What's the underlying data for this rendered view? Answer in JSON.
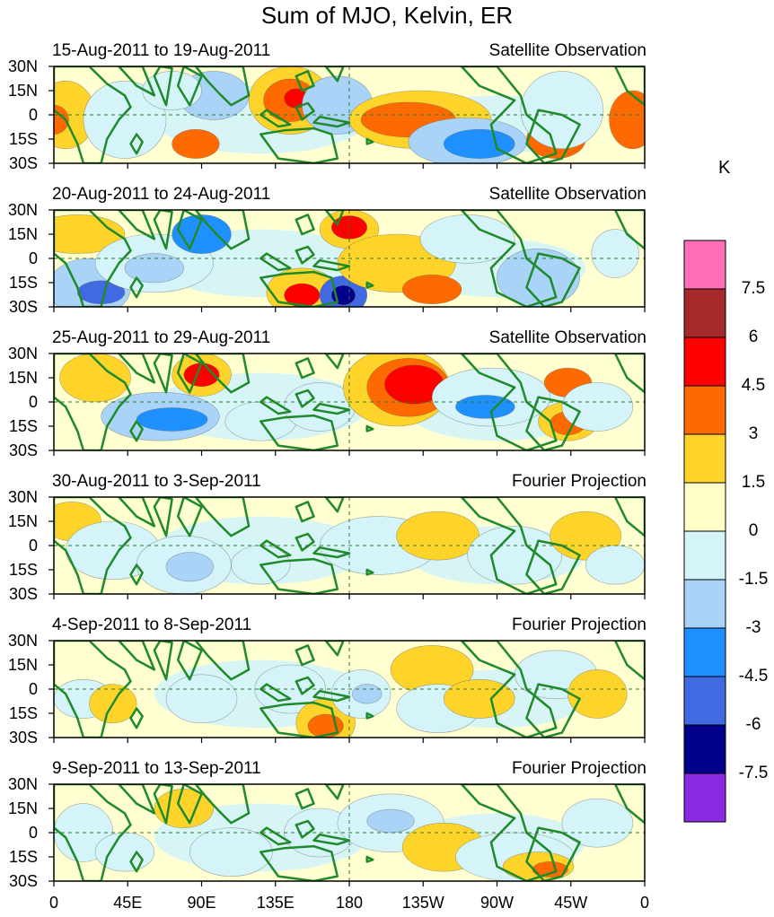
{
  "title": "Sum of MJO, Kelvin, ER",
  "panels": [
    {
      "date_range": "15-Aug-2011 to 19-Aug-2011",
      "source": "Satellite Observation"
    },
    {
      "date_range": "20-Aug-2011 to 24-Aug-2011",
      "source": "Satellite Observation"
    },
    {
      "date_range": "25-Aug-2011 to 29-Aug-2011",
      "source": "Satellite Observation"
    },
    {
      "date_range": "30-Aug-2011 to 3-Sep-2011",
      "source": "Fourier Projection"
    },
    {
      "date_range": "4-Sep-2011 to 8-Sep-2011",
      "source": "Fourier Projection"
    },
    {
      "date_range": "9-Sep-2011 to 13-Sep-2011",
      "source": "Fourier Projection"
    }
  ],
  "lat_labels": [
    "30N",
    "15N",
    "0",
    "15S",
    "30S"
  ],
  "lon_labels": [
    "0",
    "45E",
    "90E",
    "135E",
    "180",
    "135W",
    "90W",
    "45W",
    "0"
  ],
  "colorbar": {
    "unit": "K",
    "labels": [
      "7.5",
      "6",
      "4.5",
      "3",
      "1.5",
      "0",
      "-1.5",
      "-3",
      "-4.5",
      "-6",
      "-7.5"
    ],
    "colors": [
      "#ff6fb7",
      "#a52a2a",
      "#ff0000",
      "#ff6a00",
      "#ffd42a",
      "#ffffc8",
      "#d4f4fa",
      "#a9d4f8",
      "#1e90ff",
      "#4169e1",
      "#00008b",
      "#8a2be2"
    ]
  }
}
